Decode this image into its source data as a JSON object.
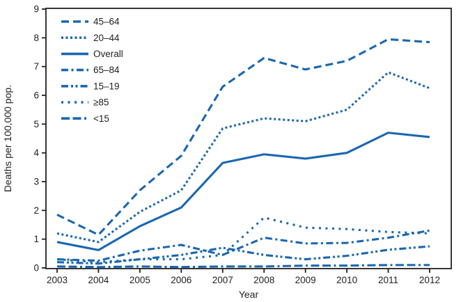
{
  "colors": {
    "line": "#1a67b0",
    "text": "#1f1f1f",
    "frame": "#231f20"
  },
  "chart_data": {
    "type": "line",
    "title": "",
    "xlabel": "Year",
    "ylabel": "Deaths per 100,000 pop.",
    "x": [
      2003,
      2004,
      2005,
      2006,
      2007,
      2008,
      2009,
      2010,
      2011,
      2012
    ],
    "xtick_labels": [
      "2003",
      "2004",
      "2005",
      "2006",
      "2007",
      "2008",
      "2009",
      "2010",
      "2011",
      "2012"
    ],
    "ylim": [
      0,
      9
    ],
    "yticks": [
      0,
      1,
      2,
      3,
      4,
      5,
      6,
      7,
      8,
      9
    ],
    "grid": false,
    "legend_position": "top-left-inside",
    "series": [
      {
        "name": "45–64",
        "dash": "long-dash",
        "values": [
          1.85,
          1.15,
          2.7,
          3.9,
          6.3,
          7.3,
          6.9,
          7.2,
          7.95,
          7.85
        ]
      },
      {
        "name": "20–44",
        "dash": "dot",
        "values": [
          1.2,
          0.9,
          1.95,
          2.7,
          4.85,
          5.2,
          5.1,
          5.5,
          6.8,
          6.25
        ]
      },
      {
        "name": "Overall",
        "dash": "solid",
        "values": [
          0.9,
          0.62,
          1.45,
          2.1,
          3.65,
          3.95,
          3.8,
          4.0,
          4.7,
          4.55
        ]
      },
      {
        "name": "65–84",
        "dash": "dash-dot",
        "values": [
          0.3,
          0.25,
          0.6,
          0.8,
          0.45,
          1.05,
          0.85,
          0.87,
          1.05,
          1.3
        ]
      },
      {
        "name": "15–19",
        "dash": "dash-dot-dot",
        "values": [
          0.2,
          0.15,
          0.3,
          0.45,
          0.7,
          0.45,
          0.3,
          0.42,
          0.63,
          0.75
        ]
      },
      {
        "name": "≥85",
        "dash": "sparse-dot",
        "values": [
          0.3,
          0.2,
          0.3,
          0.3,
          0.45,
          1.75,
          1.4,
          1.35,
          1.25,
          1.2
        ]
      },
      {
        "name": "<15",
        "dash": "dash-dash-dot",
        "values": [
          0.05,
          0.03,
          0.05,
          0.03,
          0.05,
          0.05,
          0.08,
          0.08,
          0.1,
          0.1
        ]
      }
    ]
  }
}
